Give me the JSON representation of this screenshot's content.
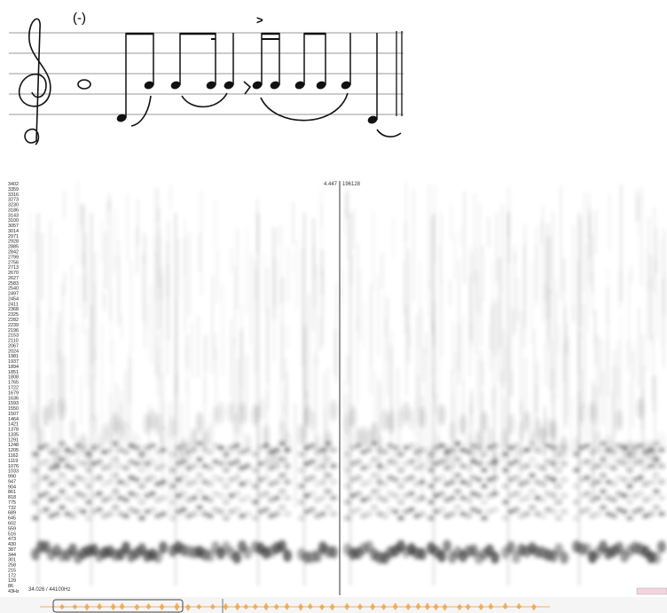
{
  "notation": {
    "dynamic": "(-)",
    "accent": ">"
  },
  "spectrogram": {
    "frequency_labels": [
      "3402",
      "3359",
      "3316",
      "3273",
      "3230",
      "3186",
      "3143",
      "3100",
      "3057",
      "3014",
      "2971",
      "2928",
      "2885",
      "2842",
      "2799",
      "2756",
      "2713",
      "2670",
      "2627",
      "2583",
      "2540",
      "2497",
      "2454",
      "2411",
      "2368",
      "2325",
      "2282",
      "2239",
      "2196",
      "2153",
      "2110",
      "2067",
      "2024",
      "1981",
      "1937",
      "1894",
      "1851",
      "1808",
      "1765",
      "1722",
      "1679",
      "1636",
      "1593",
      "1550",
      "1507",
      "1464",
      "1421",
      "1378",
      "1335",
      "1291",
      "1248",
      "1205",
      "1162",
      "1119",
      "1076",
      "1033",
      "990",
      "947",
      "904",
      "861",
      "818",
      "775",
      "732",
      "689",
      "645",
      "602",
      "559",
      "516",
      "473",
      "430",
      "387",
      "344",
      "301",
      "258",
      "215",
      "172",
      "129",
      "86",
      "43Hz"
    ],
    "cursor_time": "4.447",
    "cursor_sample": "196128",
    "position_readout": "34.026 / 44100Hz"
  }
}
